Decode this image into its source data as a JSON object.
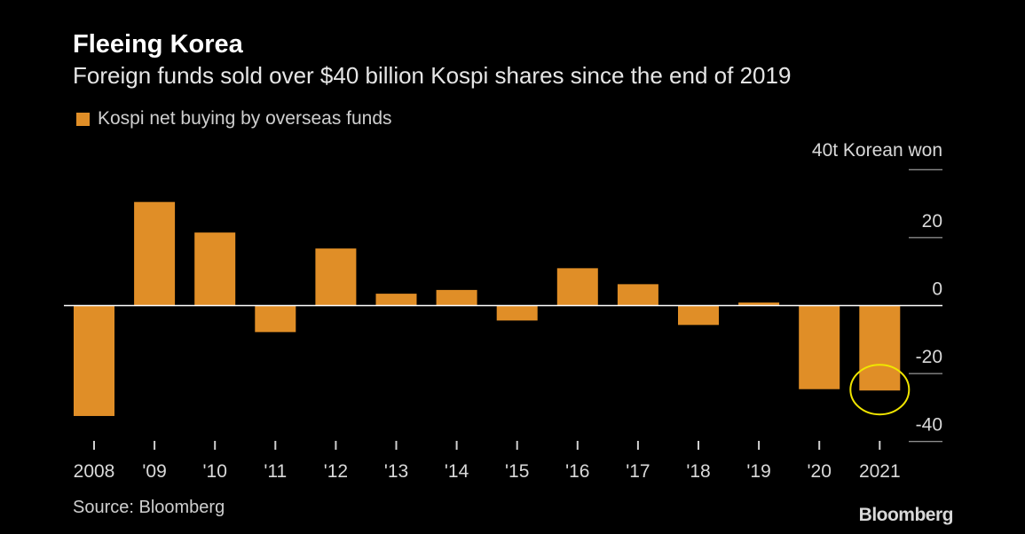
{
  "header": {
    "title": "Fleeing Korea",
    "subtitle": "Foreign funds sold over $40 billion Kospi shares since the end of 2019"
  },
  "legend": {
    "label": "Kospi net buying by overseas funds"
  },
  "footer": {
    "source": "Source: Bloomberg",
    "brand": "Bloomberg"
  },
  "colors": {
    "bar": "#e08e27",
    "zero_line": "#ffffff",
    "highlight_circle": "#f0e500",
    "background": "#000000"
  },
  "chart_data": {
    "type": "bar",
    "title": "Fleeing Korea",
    "subtitle": "Foreign funds sold over $40 billion Kospi shares since the end of 2019",
    "unit_label": "40t Korean won",
    "categories": [
      "2008",
      "'09",
      "'10",
      "'11",
      "'12",
      "'13",
      "'14",
      "'15",
      "'16",
      "'17",
      "'18",
      "'19",
      "'20",
      "2021"
    ],
    "series": [
      {
        "name": "Kospi net buying by overseas funds",
        "values": [
          -32.5,
          30.5,
          21.5,
          -7.8,
          16.8,
          3.5,
          4.6,
          -4.4,
          11.0,
          6.3,
          -5.7,
          0.9,
          -24.6,
          -25.0
        ]
      }
    ],
    "ylim": [
      -40,
      40
    ],
    "yticks": [
      20,
      0,
      -20,
      -40
    ],
    "ytick_labels": [
      "20",
      "0",
      "-20",
      "-40"
    ],
    "grid": false,
    "legend_position": "top-left",
    "highlighted_category": "2021"
  }
}
